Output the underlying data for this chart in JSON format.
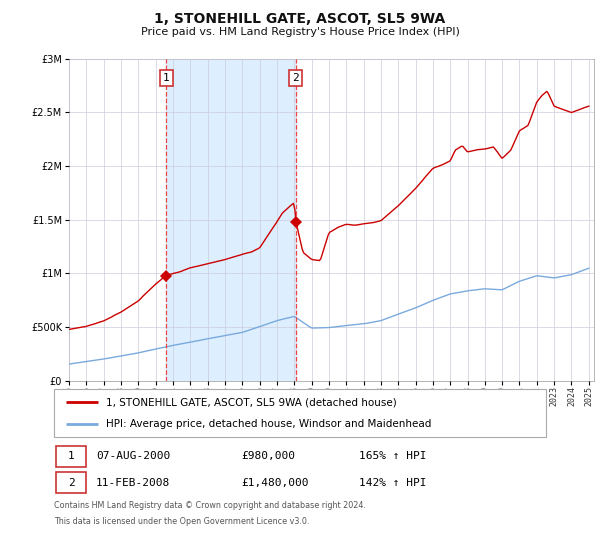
{
  "title": "1, STONEHILL GATE, ASCOT, SL5 9WA",
  "subtitle": "Price paid vs. HM Land Registry's House Price Index (HPI)",
  "legend_line1": "1, STONEHILL GATE, ASCOT, SL5 9WA (detached house)",
  "legend_line2": "HPI: Average price, detached house, Windsor and Maidenhead",
  "transaction1_label": "1",
  "transaction1_date": "07-AUG-2000",
  "transaction1_price": "£980,000",
  "transaction1_hpi": "165% ↑ HPI",
  "transaction2_label": "2",
  "transaction2_date": "11-FEB-2008",
  "transaction2_price": "£1,480,000",
  "transaction2_hpi": "142% ↑ HPI",
  "footnote1": "Contains HM Land Registry data © Crown copyright and database right 2024.",
  "footnote2": "This data is licensed under the Open Government Licence v3.0.",
  "red_color": "#cc0000",
  "blue_color": "#7aaadd",
  "shade_color": "#ddeeff",
  "dashed_color": "#ee4444",
  "grid_color": "#ccccdd",
  "ylim": [
    0,
    3000000
  ],
  "year_start": 1995,
  "year_end": 2025,
  "transaction1_year": 2000.6,
  "transaction2_year": 2008.1,
  "transaction1_value": 980000,
  "transaction2_value": 1480000
}
